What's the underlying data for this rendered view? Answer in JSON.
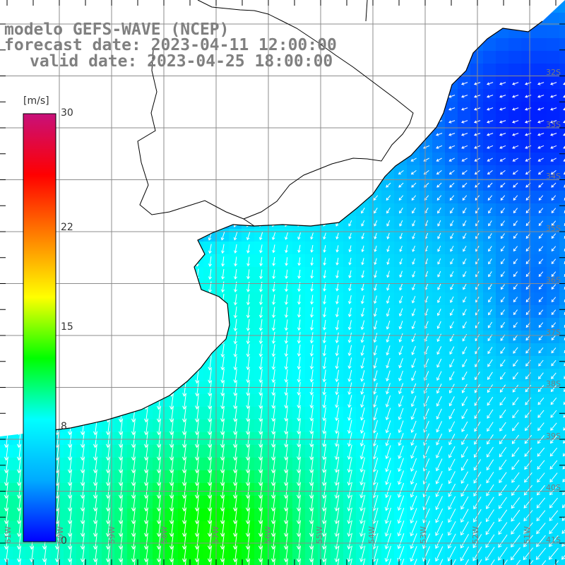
{
  "title": {
    "line1": "modelo GEFS-WAVE (NCEP)",
    "line2": "forecast date: 2023-04-11 12:00:00",
    "line3": "valid date: 2023-04-25 18:00:00"
  },
  "colorbar": {
    "unit": "[m/s]",
    "ticks": [
      {
        "label": "30",
        "value": 30
      },
      {
        "label": "22",
        "value": 22
      },
      {
        "label": "15",
        "value": 15
      },
      {
        "label": "8",
        "value": 8
      },
      {
        "label": "0",
        "value": 0
      }
    ],
    "stops": [
      "#0000ff",
      "#00aaff",
      "#00ffff",
      "#00ff00",
      "#ffff00",
      "#ff8000",
      "#ff0000",
      "#c8107a"
    ]
  },
  "lat_labels": [
    "32S",
    "33S",
    "34S",
    "35S",
    "36S",
    "37S",
    "38S",
    "39S",
    "40S",
    "41S"
  ],
  "lon_labels": [
    "61W",
    "60W",
    "59W",
    "58W",
    "57W",
    "56W",
    "55W",
    "54W",
    "53W",
    "52W",
    "51W"
  ],
  "colors": {
    "land": "#ffffff",
    "coast": "#000000",
    "grid": "#8c8c8c",
    "arrows": "#ffffff",
    "title_text": "#808080"
  }
}
